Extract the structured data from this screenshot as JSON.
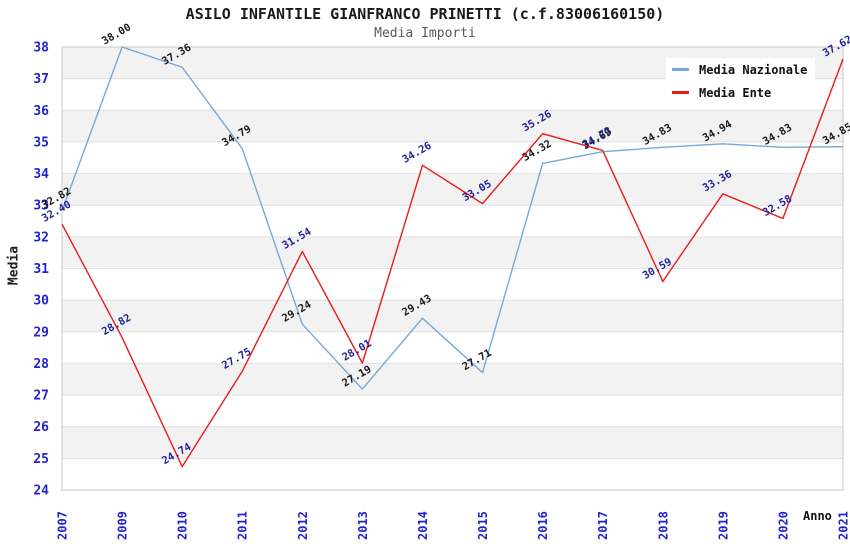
{
  "header": {
    "title": "ASILO INFANTILE GIANFRANCO PRINETTI (c.f.83006160150)",
    "subtitle": "Media Importi"
  },
  "chart_data": {
    "type": "line",
    "title": "ASILO INFANTILE GIANFRANCO PRINETTI (c.f.83006160150)",
    "subtitle": "Media Importi",
    "xlabel": "Anno",
    "ylabel": "Media",
    "x": [
      "2007",
      "2009",
      "2010",
      "2011",
      "2012",
      "2013",
      "2014",
      "2015",
      "2016",
      "2017",
      "2018",
      "2019",
      "2020",
      "2021"
    ],
    "series": [
      {
        "name": "Media Nazionale",
        "color": "#74a9d8",
        "label_color": "#1a1a1a",
        "values": [
          32.82,
          38.0,
          37.36,
          34.79,
          29.24,
          27.19,
          29.43,
          27.71,
          34.32,
          34.69,
          34.83,
          34.94,
          34.83,
          34.85
        ]
      },
      {
        "name": "Media Ente",
        "color": "#e81c1c",
        "label_color": "#22229b",
        "values": [
          32.4,
          28.82,
          24.74,
          27.75,
          31.54,
          28.01,
          34.26,
          33.05,
          35.26,
          34.73,
          30.59,
          33.36,
          32.58,
          37.62
        ]
      }
    ],
    "ylim": [
      24,
      38
    ],
    "y_tick_step": 1,
    "grid": "horizontal",
    "band_fill": "#f2f2f2",
    "gridline_color": "#e0e0e0",
    "border_color": "#c9c9c9",
    "tick_label_color": "#2323cc",
    "legend_position": "top-right"
  }
}
